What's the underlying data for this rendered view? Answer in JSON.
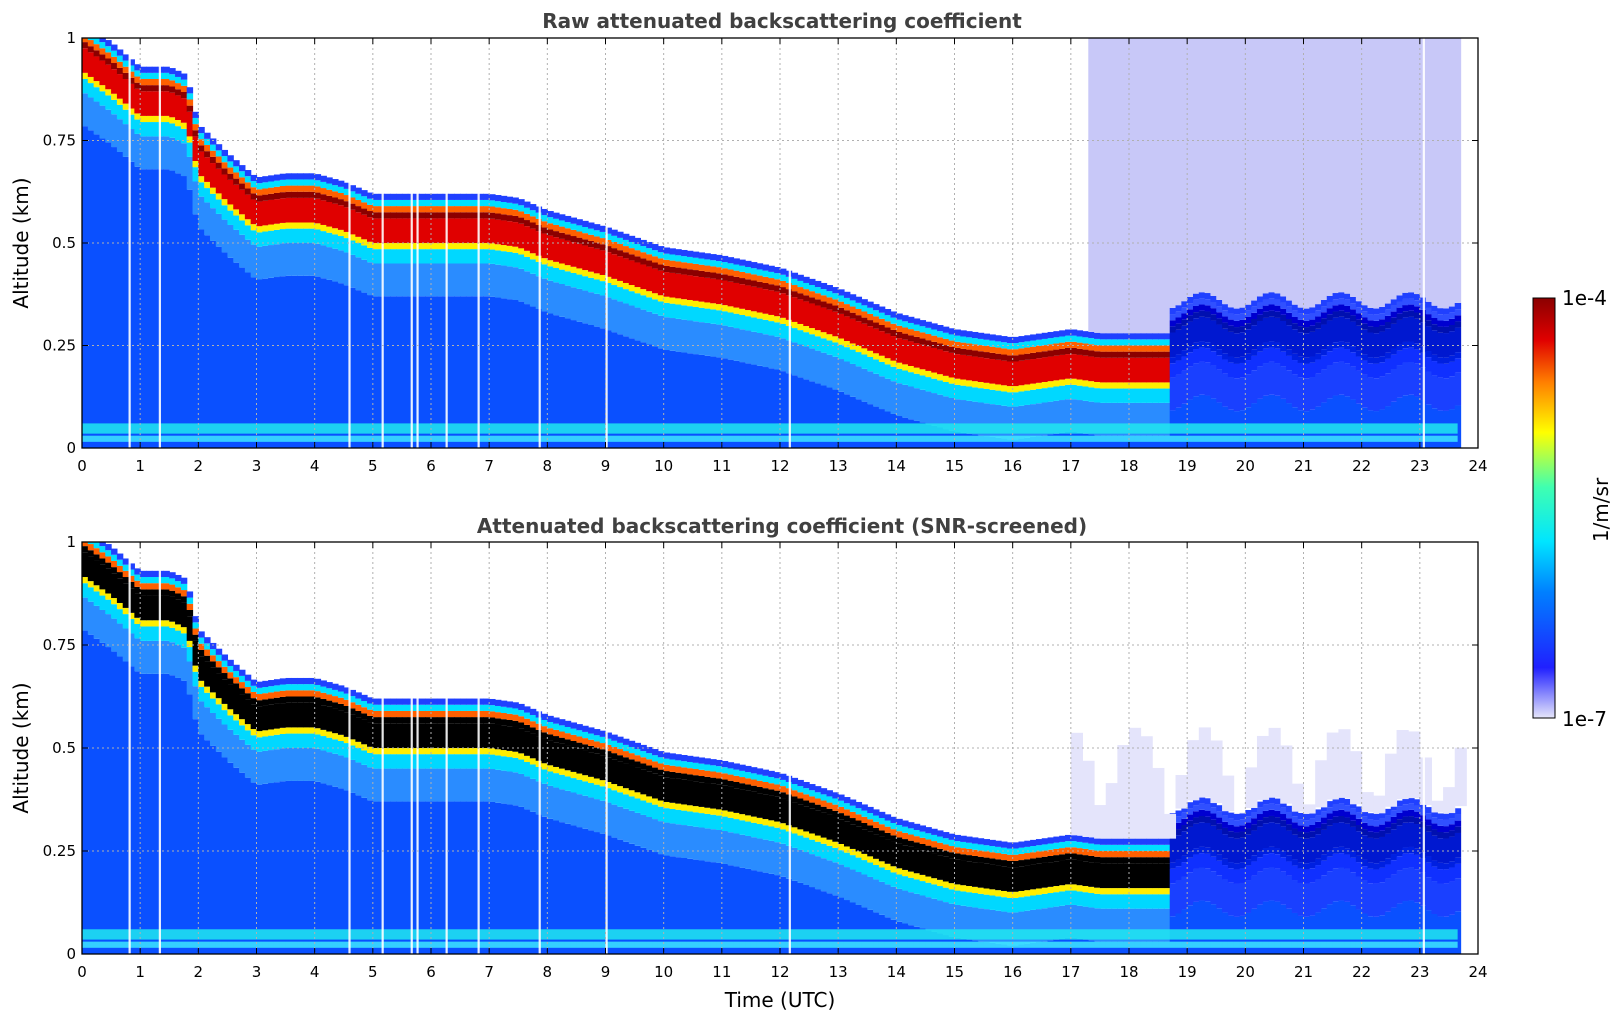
{
  "chart_data": [
    {
      "type": "heatmap",
      "title": "Raw attenuated backscattering coefficient",
      "xlabel": "",
      "ylabel": "Altitude (km)",
      "xlim": [
        0,
        24
      ],
      "ylim": [
        0,
        1
      ],
      "xticks": [
        "0",
        "1",
        "2",
        "3",
        "4",
        "5",
        "6",
        "7",
        "8",
        "9",
        "10",
        "11",
        "12",
        "13",
        "14",
        "15",
        "16",
        "17",
        "18",
        "19",
        "20",
        "21",
        "22",
        "23",
        "24"
      ],
      "yticks": [
        "0",
        "0.25",
        "0.5",
        "0.75",
        "1"
      ],
      "grid": true,
      "screened": false,
      "layer_center_km": {
        "time_utc": [
          0,
          0.5,
          1,
          1.5,
          1.8,
          2,
          2.5,
          3,
          3.5,
          4,
          4.5,
          5,
          6,
          7,
          7.5,
          8,
          9,
          10,
          11,
          12,
          13,
          14,
          15,
          16,
          17,
          17.5,
          18,
          18.7
        ],
        "altitude_km": [
          0.95,
          0.9,
          0.84,
          0.84,
          0.82,
          0.7,
          0.63,
          0.57,
          0.58,
          0.58,
          0.56,
          0.53,
          0.53,
          0.53,
          0.52,
          0.49,
          0.45,
          0.4,
          0.38,
          0.35,
          0.3,
          0.24,
          0.2,
          0.18,
          0.2,
          0.19,
          0.19,
          0.19
        ]
      }
    },
    {
      "type": "heatmap",
      "title": "Attenuated backscattering coefficient (SNR-screened)",
      "xlabel": "Time (UTC)",
      "ylabel": "Altitude (km)",
      "xlim": [
        0,
        24
      ],
      "ylim": [
        0,
        1
      ],
      "xticks": [
        "0",
        "1",
        "2",
        "3",
        "4",
        "5",
        "6",
        "7",
        "8",
        "9",
        "10",
        "11",
        "12",
        "13",
        "14",
        "15",
        "16",
        "17",
        "18",
        "19",
        "20",
        "21",
        "22",
        "23",
        "24"
      ],
      "yticks": [
        "0",
        "0.25",
        "0.5",
        "0.75",
        "1"
      ],
      "grid": true,
      "screened": true
    }
  ],
  "colorbar": {
    "label": "1/m/sr",
    "max_label": "1e-4",
    "min_label": "1e-7",
    "colormap": [
      "#e6e6fa",
      "#0000ff",
      "#00ffff",
      "#ffff00",
      "#ff0000",
      "#8b0000"
    ]
  },
  "data_end_utc": 23.65,
  "gap_times_utc": [
    0.8,
    1.32,
    4.58,
    5.15,
    5.65,
    5.75,
    6.25,
    6.8,
    7.85,
    9.0,
    12.15,
    23.05
  ]
}
